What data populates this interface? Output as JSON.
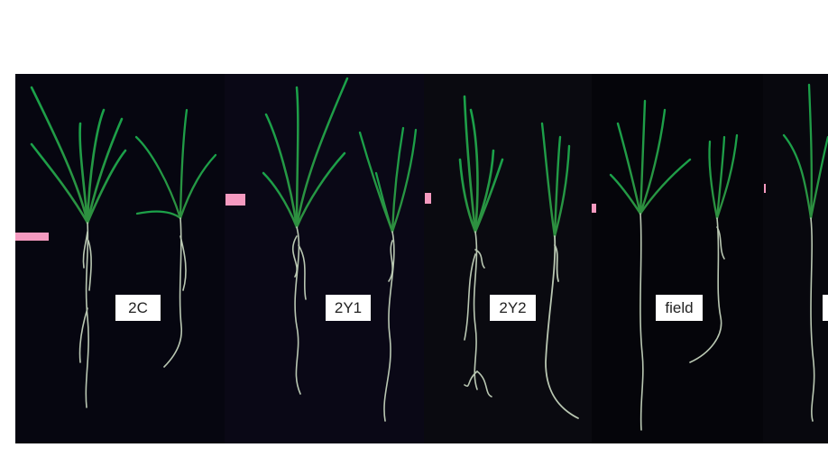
{
  "labels": {
    "l1": "2C",
    "l2": "2Y1",
    "l3": "2Y2",
    "l4": "field"
  },
  "colors": {
    "background": "#07060d",
    "leaf": "#1f8a3a",
    "root": "#b9c7b2",
    "marker": "#f59ac0"
  }
}
